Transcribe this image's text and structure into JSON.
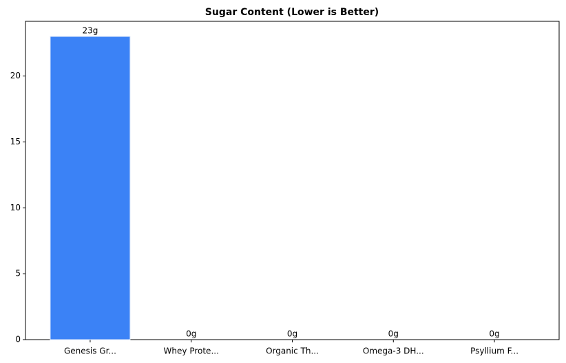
{
  "chart_data": {
    "type": "bar",
    "title": "Sugar Content (Lower is Better)",
    "categories": [
      "Genesis Gr...",
      "Whey Prote...",
      "Organic Th...",
      "Omega-3 DH...",
      "Psyllium F..."
    ],
    "values": [
      23,
      0,
      0,
      0,
      0
    ],
    "value_labels": [
      "23g",
      "0g",
      "0g",
      "0g",
      "0g"
    ],
    "color": "#3b82f6",
    "ylim": [
      0,
      24.15
    ],
    "yticks": [
      0,
      5,
      10,
      15,
      20
    ],
    "grid": false
  }
}
